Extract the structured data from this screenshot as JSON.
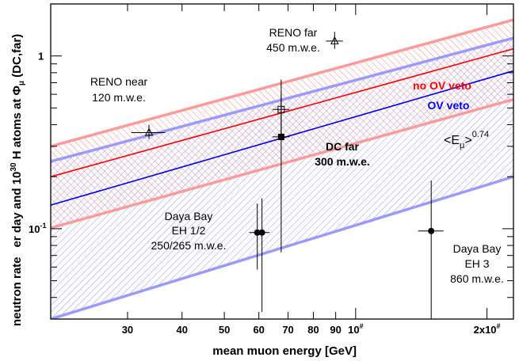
{
  "chart_data": {
    "type": "scatter",
    "xlabel": "mean muon energy [GeV]",
    "ylabel_parts": [
      "neutron rate",
      "er day and 10",
      "30",
      " H atoms at ",
      "Φ",
      "μ",
      " (DC,far)"
    ],
    "x_scale": "log",
    "y_scale": "log",
    "xlim": [
      20,
      230
    ],
    "ylim": [
      0.03,
      2.0
    ],
    "x_tick_labels": [
      {
        "value": 30,
        "label": "30"
      },
      {
        "value": 40,
        "label": "40"
      },
      {
        "value": 50,
        "label": "50"
      },
      {
        "value": 60,
        "label": "60"
      },
      {
        "value": 70,
        "label": "70"
      },
      {
        "value": 80,
        "label": "80"
      },
      {
        "value": 90,
        "label": "90"
      },
      {
        "value": 100,
        "label": "10",
        "sup": "#"
      },
      {
        "value": 200,
        "label": "2x10",
        "sup": "#"
      }
    ],
    "y_tick_labels": [
      {
        "value": 0.1,
        "label": "10",
        "sup": "-1"
      },
      {
        "value": 1,
        "label": "1"
      }
    ],
    "lines": [
      {
        "name": "no OV veto",
        "color": "#ff0000",
        "width": 1.6,
        "points": [
          [
            20,
            0.2
          ],
          [
            230,
            1.1
          ]
        ]
      },
      {
        "name": "OV veto",
        "color": "#0000ee",
        "width": 1.6,
        "points": [
          [
            20,
            0.137
          ],
          [
            230,
            0.82
          ]
        ]
      },
      {
        "color": "#ff9a9a",
        "width": 3.5,
        "points": [
          [
            20,
            0.3
          ],
          [
            230,
            1.62
          ]
        ]
      },
      {
        "color": "#ff9a9a",
        "width": 3.5,
        "points": [
          [
            20,
            0.101
          ],
          [
            230,
            0.56
          ]
        ]
      },
      {
        "color": "#9a9aff",
        "width": 3.5,
        "points": [
          [
            20,
            0.245
          ],
          [
            230,
            1.27
          ]
        ]
      },
      {
        "color": "#9a9aff",
        "width": 3.5,
        "points": [
          [
            20,
            0.03
          ],
          [
            230,
            0.2
          ]
        ]
      }
    ],
    "bands": [
      {
        "color": "#ff7a7a",
        "upper": [
          [
            20,
            0.3
          ],
          [
            230,
            1.62
          ]
        ],
        "lower": [
          [
            20,
            0.101
          ],
          [
            230,
            0.56
          ]
        ],
        "angle": -45
      },
      {
        "color": "#8c8cff",
        "upper": [
          [
            20,
            0.245
          ],
          [
            230,
            1.27
          ]
        ],
        "lower": [
          [
            20,
            0.03
          ],
          [
            230,
            0.2
          ]
        ],
        "angle": 45
      }
    ],
    "points": [
      {
        "x": 33.6,
        "y": 0.36,
        "xerr": 3,
        "ylo": 0.33,
        "yhi": 0.4,
        "marker": "triangle-open"
      },
      {
        "x": 67.5,
        "y": 0.49,
        "xerr": 3,
        "ylo": 0.33,
        "yhi": 0.73,
        "marker": "square-open"
      },
      {
        "x": 67.5,
        "y": 0.34,
        "xerr": 3,
        "ylo": 0.073,
        "yhi": 0.6,
        "marker": "square-filled"
      },
      {
        "x": 89.5,
        "y": 1.22,
        "xerr": 4,
        "ylo": 1.1,
        "yhi": 1.38,
        "marker": "triangle-open"
      },
      {
        "x": 59.5,
        "y": 0.095,
        "xerr": 2.5,
        "ylo": 0.058,
        "yhi": 0.14,
        "marker": "circle-filled"
      },
      {
        "x": 61.0,
        "y": 0.095,
        "xerr": 2.5,
        "ylo": 0.033,
        "yhi": 0.15,
        "marker": "circle-filled"
      },
      {
        "x": 149,
        "y": 0.097,
        "xerr": 10,
        "ylo": 0.03,
        "yhi": 0.19,
        "marker": "circle-filled"
      }
    ],
    "annotations": {
      "reno_far": [
        "RENO far",
        "450 m.w.e."
      ],
      "reno_near": [
        "RENO near",
        "120 m.w.e."
      ],
      "no_ov": "no OV veto",
      "ov": "OV veto",
      "formula_main": "<E",
      "formula_sub": "μ",
      "formula_close": ">",
      "formula_exp": "0.74",
      "dc_far": [
        "DC far",
        "300 m.w.e."
      ],
      "daya_eh12": [
        "Daya Bay",
        "EH 1/2",
        "250/265 m.w.e."
      ],
      "daya_eh3": [
        "Daya Bay",
        "EH 3",
        "860 m.w.e."
      ]
    }
  }
}
